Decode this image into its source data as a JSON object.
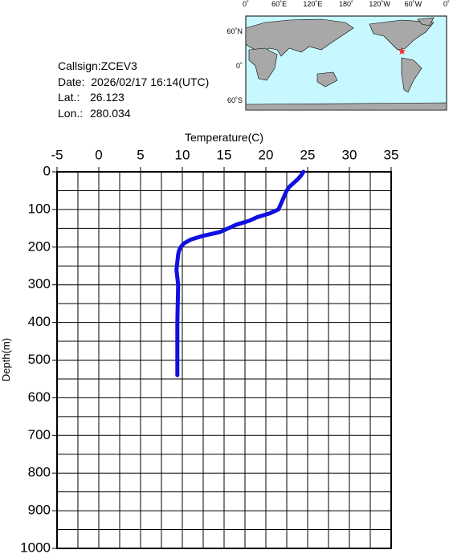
{
  "info": {
    "callsign": "Callsign:ZCEV3",
    "date": "Date:  2026/02/17 16:14(UTC)",
    "lat_label": "Lat.:",
    "lat": 26.123,
    "lon_label": "Lon.:",
    "lon": 280.034
  },
  "map": {
    "lon_labels": [
      "0˚",
      "60˚E",
      "120˚E",
      "180˚",
      "120˚W",
      "60˚W",
      "0˚"
    ],
    "lat_labels": [
      "60˚N",
      "0˚",
      "60˚S"
    ]
  },
  "chart_data": {
    "type": "line",
    "x_label": "Temperature(C)",
    "y_label": "Depth(m)",
    "x": [
      24.5,
      24.2,
      23.8,
      23.3,
      22.8,
      22.5,
      22.3,
      21.9,
      21.5,
      20.5,
      19.8,
      19.0,
      18.0,
      16.5,
      15.5,
      14.5,
      12.5,
      11.0,
      10.2,
      9.8,
      9.6,
      9.5,
      9.3,
      9.5,
      9.4,
      9.4,
      9.4
    ],
    "values": [
      0,
      10,
      20,
      30,
      40,
      50,
      60,
      80,
      100,
      110,
      115,
      120,
      130,
      140,
      150,
      160,
      170,
      180,
      190,
      200,
      210,
      220,
      260,
      300,
      400,
      500,
      540
    ],
    "color": "#1010e0",
    "xlim": [
      -5,
      35
    ],
    "xticks": [
      -5,
      0,
      5,
      10,
      15,
      20,
      25,
      30,
      35
    ],
    "ylim": [
      0,
      1000
    ],
    "yticks": [
      0,
      100,
      200,
      300,
      400,
      500,
      600,
      700,
      800,
      900,
      1000
    ],
    "y_inverted": true,
    "grid": true
  }
}
